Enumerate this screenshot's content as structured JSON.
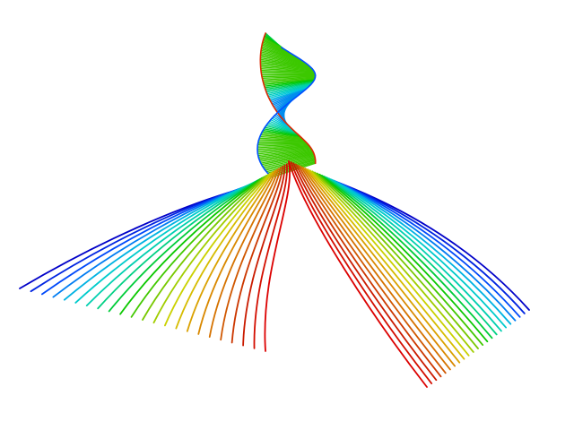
{
  "scene": {
    "background": "#ffffff",
    "description_visible_text": "",
    "colormap": [
      "#0000c8",
      "#0050ff",
      "#00c8dc",
      "#00d2a0",
      "#00c800",
      "#78c800",
      "#d2d200",
      "#dc9600",
      "#d26400",
      "#c81e00",
      "#dc0000"
    ],
    "strand_count": 46
  }
}
